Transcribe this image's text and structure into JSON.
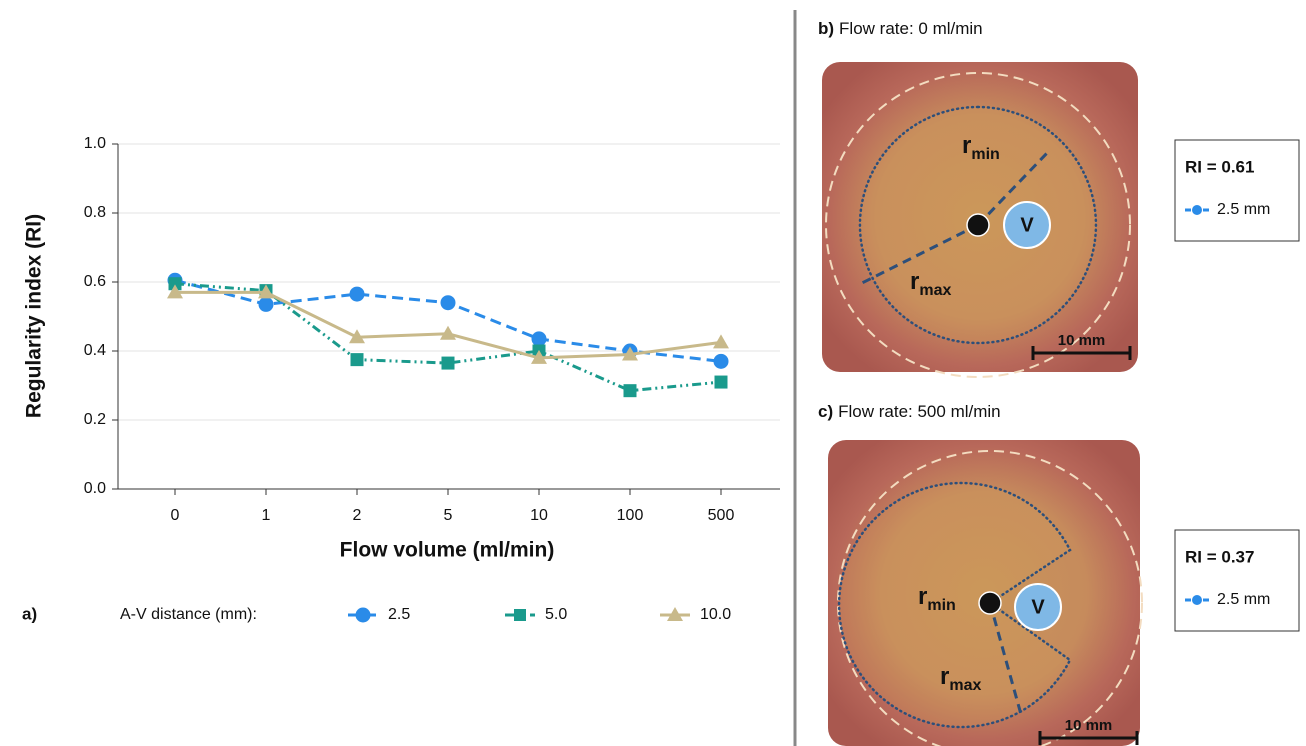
{
  "chart_data": {
    "type": "line",
    "panel_label": "a)",
    "ylabel": "Regularity index (RI)",
    "xlabel": "Flow volume (ml/min)",
    "legend_title": "A-V distance (mm):",
    "categories": [
      "0",
      "1",
      "2",
      "5",
      "10",
      "100",
      "500"
    ],
    "ylim": [
      0,
      1
    ],
    "yticks": [
      {
        "value": 0,
        "label": "0.0"
      },
      {
        "value": 0.2,
        "label": "0.2"
      },
      {
        "value": 0.4,
        "label": "0.4"
      },
      {
        "value": 0.6,
        "label": "0.6"
      },
      {
        "value": 0.8,
        "label": "0.8"
      },
      {
        "value": 1,
        "label": "1.0"
      }
    ],
    "grid": true,
    "series": [
      {
        "name": "2.5",
        "color": "#2a8be8",
        "linestyle": "dashed",
        "marker": "circle",
        "values": [
          0.605,
          0.535,
          0.565,
          0.54,
          0.435,
          0.4,
          0.37
        ]
      },
      {
        "name": "5.0",
        "color": "#1a9a8c",
        "linestyle": "dashdot",
        "marker": "square",
        "values": [
          0.595,
          0.575,
          0.375,
          0.365,
          0.4,
          0.285,
          0.31
        ]
      },
      {
        "name": "10.0",
        "color": "#c8b98a",
        "linestyle": "solid",
        "marker": "triangle",
        "values": [
          0.57,
          0.57,
          0.44,
          0.45,
          0.38,
          0.39,
          0.425
        ]
      }
    ]
  },
  "panels": [
    {
      "label": "b)",
      "title": "Flow rate: 0 ml/min",
      "ri": "RI = 0.61",
      "legend": "2.5 mm",
      "scale": "10 mm",
      "vessel": "V",
      "r_min": {
        "symbol": "r",
        "subscript": "min"
      },
      "r_max": {
        "symbol": "r",
        "subscript": "max"
      }
    },
    {
      "label": "c)",
      "title": "Flow rate: 500 ml/min",
      "ri": "RI = 0.37",
      "legend": "2.5 mm",
      "scale": "10 mm",
      "vessel": "V",
      "r_min": {
        "symbol": "r",
        "subscript": "min"
      },
      "r_max": {
        "symbol": "r",
        "subscript": "max"
      }
    }
  ]
}
